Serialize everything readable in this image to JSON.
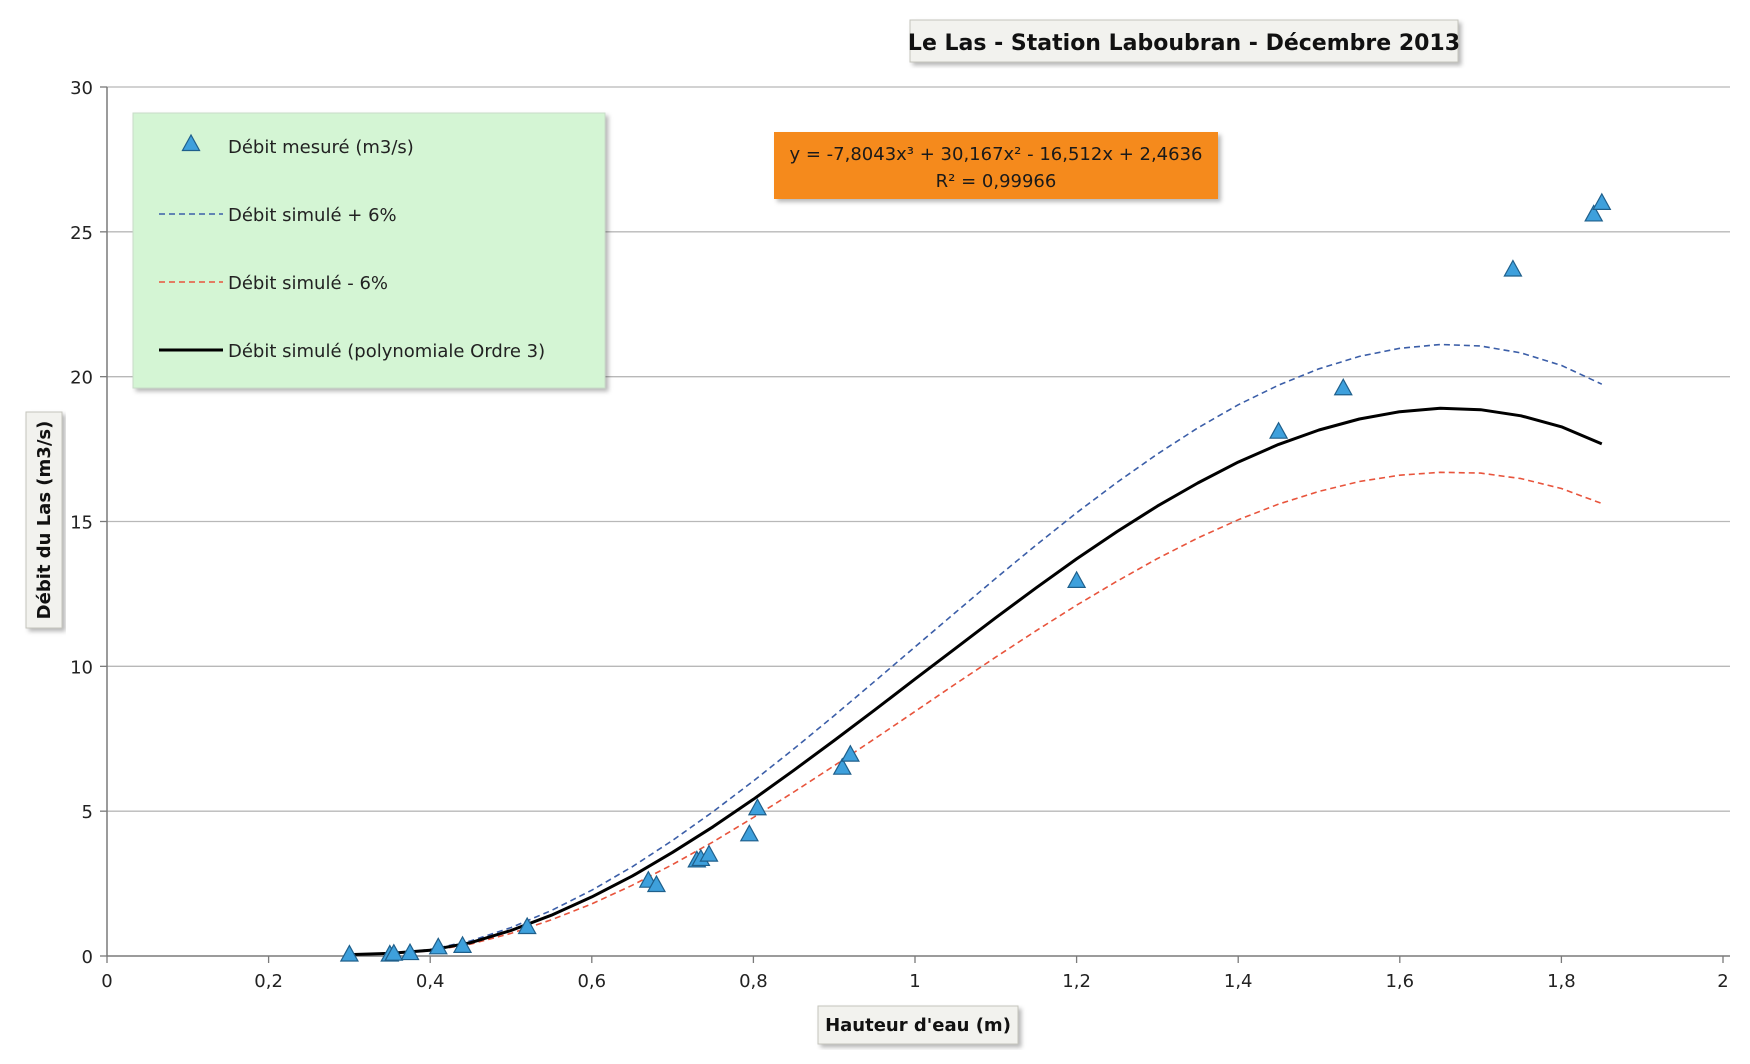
{
  "chart_data": {
    "type": "scatter",
    "title": "Le Las - Station Laboubran - Décembre 2013",
    "xlabel": "Hauteur d'eau (m)",
    "ylabel": "Débit du Las (m3/s)",
    "xlim": [
      0,
      2
    ],
    "ylim": [
      0,
      30
    ],
    "x_ticks": [
      0,
      0.2,
      0.4,
      0.6,
      0.8,
      1,
      1.2,
      1.4,
      1.6,
      1.8,
      2
    ],
    "x_tick_labels": [
      "0",
      "0,2",
      "0,4",
      "0,6",
      "0,8",
      "1",
      "1,2",
      "1,4",
      "1,6",
      "1,8",
      "2"
    ],
    "y_ticks": [
      0,
      5,
      10,
      15,
      20,
      25,
      30
    ],
    "y_tick_labels": [
      "0",
      "5",
      "10",
      "15",
      "20",
      "25",
      "30"
    ],
    "grid": "horizontal",
    "legend_position": "top-left",
    "equation_lines": [
      "y = -7,8043x³ + 30,167x² - 16,512x + 2,4636",
      "R² = 0,99966"
    ],
    "colors": {
      "marker_fill": "#3ea0dc",
      "marker_stroke": "#1f5f8b",
      "plus6": "#3b5ea8",
      "minus6": "#e8543c",
      "poly": "#000000",
      "legend_bg": "#d4f5d4",
      "equation_bg": "#f58a1f",
      "grid": "#b8b8b8"
    },
    "series": [
      {
        "name": "Débit mesuré (m3/s)",
        "kind": "markers",
        "marker": "triangle",
        "points": [
          [
            0.3,
            0.05
          ],
          [
            0.35,
            0.05
          ],
          [
            0.355,
            0.08
          ],
          [
            0.375,
            0.1
          ],
          [
            0.41,
            0.3
          ],
          [
            0.44,
            0.35
          ],
          [
            0.52,
            1.0
          ],
          [
            0.67,
            2.6
          ],
          [
            0.68,
            2.45
          ],
          [
            0.73,
            3.3
          ],
          [
            0.735,
            3.35
          ],
          [
            0.745,
            3.5
          ],
          [
            0.795,
            4.2
          ],
          [
            0.805,
            5.1
          ],
          [
            0.91,
            6.5
          ],
          [
            0.92,
            6.95
          ],
          [
            1.2,
            12.95
          ],
          [
            1.45,
            18.1
          ],
          [
            1.53,
            19.6
          ],
          [
            1.74,
            23.7
          ],
          [
            1.84,
            25.6
          ],
          [
            1.85,
            26.0
          ]
        ]
      },
      {
        "name": "Débit simulé + 6%",
        "kind": "line",
        "style": "dashed",
        "points": [
          [
            0.3,
            0.06
          ],
          [
            0.35,
            0.1
          ],
          [
            0.4,
            0.22
          ],
          [
            0.45,
            0.52
          ],
          [
            0.5,
            0.98
          ],
          [
            0.55,
            1.57
          ],
          [
            0.6,
            2.27
          ],
          [
            0.65,
            3.08
          ],
          [
            0.7,
            3.99
          ],
          [
            0.75,
            4.98
          ],
          [
            0.8,
            6.04
          ],
          [
            0.85,
            7.15
          ],
          [
            0.9,
            8.3
          ],
          [
            0.95,
            9.48
          ],
          [
            1.0,
            10.67
          ],
          [
            1.05,
            11.86
          ],
          [
            1.1,
            13.04
          ],
          [
            1.15,
            14.19
          ],
          [
            1.2,
            15.3
          ],
          [
            1.25,
            16.35
          ],
          [
            1.3,
            17.33
          ],
          [
            1.35,
            18.23
          ],
          [
            1.4,
            19.03
          ],
          [
            1.45,
            19.71
          ],
          [
            1.5,
            20.27
          ],
          [
            1.55,
            20.7
          ],
          [
            1.6,
            20.98
          ],
          [
            1.65,
            21.11
          ],
          [
            1.7,
            21.06
          ],
          [
            1.75,
            20.82
          ],
          [
            1.8,
            20.39
          ],
          [
            1.85,
            19.74
          ]
        ]
      },
      {
        "name": "Débit simulé - 6%",
        "kind": "line",
        "style": "dashed",
        "points": [
          [
            0.3,
            0.05
          ],
          [
            0.35,
            0.08
          ],
          [
            0.4,
            0.18
          ],
          [
            0.45,
            0.41
          ],
          [
            0.5,
            0.78
          ],
          [
            0.55,
            1.25
          ],
          [
            0.6,
            1.8
          ],
          [
            0.65,
            2.44
          ],
          [
            0.7,
            3.16
          ],
          [
            0.75,
            3.94
          ],
          [
            0.8,
            4.78
          ],
          [
            0.85,
            5.66
          ],
          [
            0.9,
            6.57
          ],
          [
            0.95,
            7.5
          ],
          [
            1.0,
            8.44
          ],
          [
            1.05,
            9.39
          ],
          [
            1.1,
            10.32
          ],
          [
            1.15,
            11.23
          ],
          [
            1.2,
            12.11
          ],
          [
            1.25,
            12.94
          ],
          [
            1.3,
            13.72
          ],
          [
            1.35,
            14.43
          ],
          [
            1.4,
            15.06
          ],
          [
            1.45,
            15.6
          ],
          [
            1.5,
            16.04
          ],
          [
            1.55,
            16.38
          ],
          [
            1.6,
            16.6
          ],
          [
            1.65,
            16.7
          ],
          [
            1.7,
            16.67
          ],
          [
            1.75,
            16.48
          ],
          [
            1.8,
            16.14
          ],
          [
            1.85,
            15.62
          ]
        ]
      },
      {
        "name": "Débit simulé (polynomiale Ordre 3)",
        "kind": "line",
        "style": "solid",
        "points": [
          [
            0.3,
            0.05
          ],
          [
            0.35,
            0.09
          ],
          [
            0.4,
            0.2
          ],
          [
            0.45,
            0.46
          ],
          [
            0.5,
            0.88
          ],
          [
            0.55,
            1.41
          ],
          [
            0.6,
            2.04
          ],
          [
            0.65,
            2.76
          ],
          [
            0.7,
            3.58
          ],
          [
            0.75,
            4.46
          ],
          [
            0.8,
            5.41
          ],
          [
            0.85,
            6.41
          ],
          [
            0.9,
            7.44
          ],
          [
            0.95,
            8.49
          ],
          [
            1.0,
            9.56
          ],
          [
            1.05,
            10.62
          ],
          [
            1.1,
            11.68
          ],
          [
            1.15,
            12.71
          ],
          [
            1.2,
            13.71
          ],
          [
            1.25,
            14.65
          ],
          [
            1.3,
            15.53
          ],
          [
            1.35,
            16.33
          ],
          [
            1.4,
            17.05
          ],
          [
            1.45,
            17.66
          ],
          [
            1.5,
            18.16
          ],
          [
            1.55,
            18.54
          ],
          [
            1.6,
            18.79
          ],
          [
            1.65,
            18.91
          ],
          [
            1.7,
            18.86
          ],
          [
            1.75,
            18.65
          ],
          [
            1.8,
            18.27
          ],
          [
            1.85,
            17.68
          ]
        ]
      }
    ]
  }
}
